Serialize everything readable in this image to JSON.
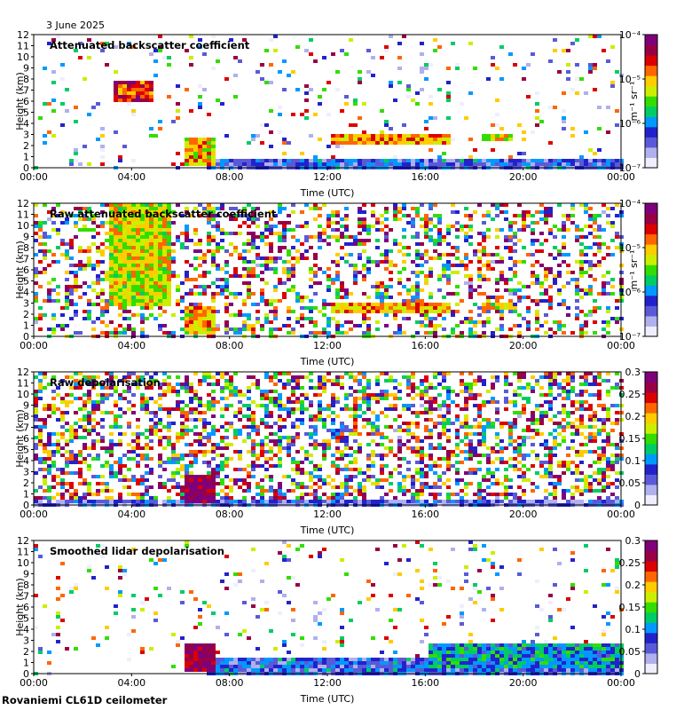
{
  "date_label": "3 June 2025",
  "footer": "Rovaniemi CL61D ceilometer",
  "colors": {
    "background_gray": "#d9d9d9",
    "cmap": [
      "#eeeeff",
      "#b0b0ee",
      "#5a5ad8",
      "#2222cc",
      "#0099ff",
      "#00cc66",
      "#33dd00",
      "#ccee00",
      "#ffcc00",
      "#ff6600",
      "#dd0000",
      "#990044",
      "#80007a"
    ]
  },
  "chart_data": [
    {
      "type": "heatmap",
      "title": "Attenuated backscatter coefficient",
      "xlabel": "Time (UTC)",
      "ylabel": "Height (km)",
      "x_ticks": [
        "00:00",
        "04:00",
        "08:00",
        "12:00",
        "16:00",
        "20:00",
        "00:00"
      ],
      "y_ticks": [
        "0",
        "1",
        "2",
        "3",
        "4",
        "5",
        "6",
        "7",
        "8",
        "9",
        "10",
        "11",
        "12"
      ],
      "ylim": [
        0,
        12
      ],
      "colorbar": {
        "scale": "log",
        "unit": "m⁻¹ sr⁻¹",
        "ticks": [
          "10⁻⁷",
          "10⁻⁶",
          "10⁻⁵",
          "10⁻⁴"
        ]
      },
      "noise": 0.12,
      "features": [
        {
          "t0": 6.0,
          "t1": 7.4,
          "h0": 0.2,
          "h1": 3.0,
          "level": 0.65
        },
        {
          "t0": 7.0,
          "t1": 24.0,
          "h0": 0.0,
          "h1": 1.0,
          "level": 0.25
        },
        {
          "t0": 12.0,
          "t1": 17.0,
          "h0": 2.3,
          "h1": 3.3,
          "level": 0.7
        },
        {
          "t0": 18.2,
          "t1": 19.5,
          "h0": 2.5,
          "h1": 3.1,
          "level": 0.6
        },
        {
          "t0": 3.2,
          "t1": 4.8,
          "h0": 6.0,
          "h1": 8.0,
          "level": 0.8
        }
      ]
    },
    {
      "type": "heatmap",
      "title": "Raw attenuated backscatter coefficient",
      "xlabel": "Time (UTC)",
      "ylabel": "Height (km)",
      "x_ticks": [
        "00:00",
        "04:00",
        "08:00",
        "12:00",
        "16:00",
        "20:00",
        "00:00"
      ],
      "y_ticks": [
        "0",
        "1",
        "2",
        "3",
        "4",
        "5",
        "6",
        "7",
        "8",
        "9",
        "10",
        "11",
        "12"
      ],
      "ylim": [
        0,
        12
      ],
      "colorbar": {
        "scale": "log",
        "unit": "m⁻¹ sr⁻¹",
        "ticks": [
          "10⁻⁷",
          "10⁻⁶",
          "10⁻⁵",
          "10⁻⁴"
        ]
      },
      "noise": 0.55,
      "features": [
        {
          "t0": 3.0,
          "t1": 5.5,
          "h0": 3.0,
          "h1": 12.0,
          "level": 0.6
        },
        {
          "t0": 6.0,
          "t1": 7.4,
          "h0": 0.2,
          "h1": 3.0,
          "level": 0.65
        },
        {
          "t0": 12.0,
          "t1": 17.0,
          "h0": 2.3,
          "h1": 3.3,
          "level": 0.7
        },
        {
          "t0": 18.2,
          "t1": 19.5,
          "h0": 2.5,
          "h1": 3.1,
          "level": 0.6
        }
      ]
    },
    {
      "type": "heatmap",
      "title": "Raw depolarisation",
      "xlabel": "Time (UTC)",
      "ylabel": "Height (km)",
      "x_ticks": [
        "00:00",
        "04:00",
        "08:00",
        "12:00",
        "16:00",
        "20:00",
        "00:00"
      ],
      "y_ticks": [
        "0",
        "1",
        "2",
        "3",
        "4",
        "5",
        "6",
        "7",
        "8",
        "9",
        "10",
        "11",
        "12"
      ],
      "ylim": [
        0,
        12
      ],
      "colorbar": {
        "scale": "linear",
        "unit": "",
        "ticks": [
          "0",
          "0.05",
          "0.1",
          "0.15",
          "0.2",
          "0.25",
          "0.3"
        ]
      },
      "noise": 0.7,
      "features": [
        {
          "t0": 6.0,
          "t1": 7.3,
          "h0": 0.4,
          "h1": 3.0,
          "level": 0.95
        },
        {
          "t0": 0.0,
          "t1": 24.0,
          "h0": 0.0,
          "h1": 0.6,
          "level": 0.2
        }
      ]
    },
    {
      "type": "heatmap",
      "title": "Smoothed lidar depolarisation",
      "xlabel": "Time (UTC)",
      "ylabel": "Height (km)",
      "x_ticks": [
        "00:00",
        "04:00",
        "08:00",
        "12:00",
        "16:00",
        "20:00",
        "00:00"
      ],
      "y_ticks": [
        "0",
        "1",
        "2",
        "3",
        "4",
        "5",
        "6",
        "7",
        "8",
        "9",
        "10",
        "11",
        "12"
      ],
      "ylim": [
        0,
        12
      ],
      "colorbar": {
        "scale": "linear",
        "unit": "",
        "ticks": [
          "0",
          "0.05",
          "0.1",
          "0.15",
          "0.2",
          "0.25",
          "0.3"
        ]
      },
      "noise": 0.1,
      "features": [
        {
          "t0": 6.0,
          "t1": 7.4,
          "h0": 0.4,
          "h1": 3.0,
          "level": 0.95
        },
        {
          "t0": 7.0,
          "t1": 24.0,
          "h0": 0.0,
          "h1": 1.5,
          "level": 0.25
        },
        {
          "t0": 16.0,
          "t1": 24.0,
          "h0": 0.5,
          "h1": 3.0,
          "level": 0.35
        }
      ]
    }
  ]
}
